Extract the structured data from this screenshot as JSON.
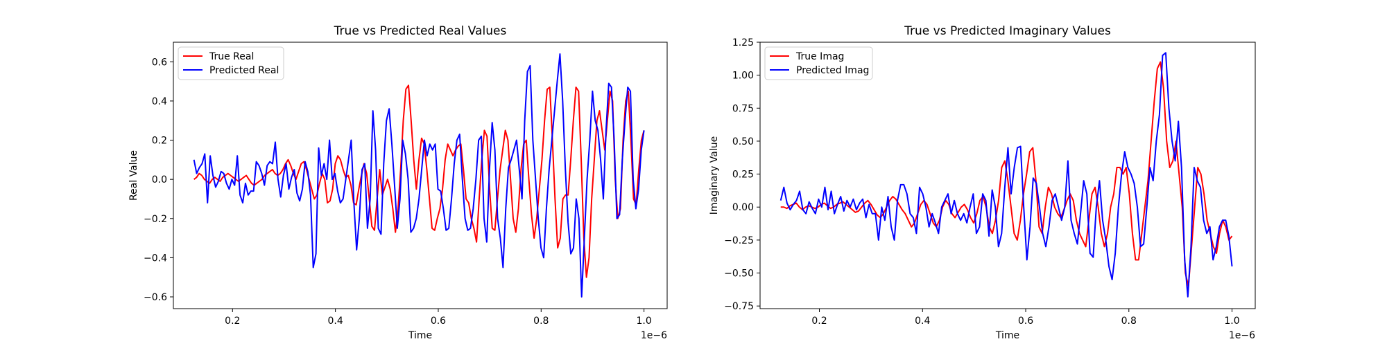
{
  "chart_data": [
    {
      "type": "line",
      "title": "True vs Predicted Real Values",
      "xlabel": "Time",
      "ylabel": "Real Value",
      "x_offset_label": "1e−6",
      "xlim": [
        0.085,
        1.045
      ],
      "ylim": [
        -0.66,
        0.7
      ],
      "xticks": [
        0.2,
        0.4,
        0.6,
        0.8,
        1.0
      ],
      "xtick_labels": [
        "0.2",
        "0.4",
        "0.6",
        "0.8",
        "1.0"
      ],
      "yticks": [
        -0.6,
        -0.4,
        -0.2,
        0.0,
        0.2,
        0.4,
        0.6
      ],
      "ytick_labels": [
        "−0.6",
        "−0.4",
        "−0.2",
        "0.0",
        "0.2",
        "0.4",
        "0.6"
      ],
      "legend": "upper-left",
      "x_range": [
        0.125,
        1.0
      ],
      "series": [
        {
          "name": "True Real",
          "color": "#ff0000",
          "values": [
            0.0,
            0.01,
            0.03,
            0.02,
            0.0,
            -0.01,
            -0.02,
            0.0,
            0.01,
            0.0,
            -0.01,
            0.01,
            0.02,
            0.03,
            0.02,
            0.01,
            0.0,
            -0.01,
            0.0,
            0.01,
            0.02,
            0.0,
            -0.02,
            -0.03,
            -0.02,
            -0.01,
            0.0,
            0.02,
            0.03,
            0.04,
            0.05,
            0.03,
            0.02,
            0.03,
            0.05,
            0.08,
            0.1,
            0.07,
            0.03,
            0.0,
            0.04,
            0.08,
            0.09,
            0.05,
            0.0,
            -0.05,
            -0.1,
            -0.08,
            -0.02,
            0.03,
            0.0,
            -0.12,
            -0.11,
            -0.05,
            0.08,
            0.12,
            0.1,
            0.05,
            0.01,
            0.02,
            -0.03,
            -0.12,
            -0.13,
            -0.05,
            0.02,
            0.08,
            0.03,
            -0.1,
            -0.24,
            -0.26,
            -0.1,
            0.05,
            -0.08,
            -0.04,
            0.0,
            -0.05,
            -0.15,
            -0.27,
            -0.15,
            0.05,
            0.3,
            0.46,
            0.48,
            0.3,
            0.1,
            -0.05,
            0.1,
            0.21,
            0.18,
            0.05,
            -0.1,
            -0.25,
            -0.26,
            -0.2,
            -0.15,
            -0.05,
            0.1,
            0.18,
            0.15,
            0.12,
            0.15,
            0.17,
            0.18,
            0.05,
            -0.1,
            -0.12,
            -0.2,
            -0.25,
            -0.32,
            -0.1,
            0.1,
            0.25,
            0.22,
            -0.05,
            -0.25,
            -0.26,
            -0.1,
            0.05,
            0.15,
            0.25,
            0.2,
            0.0,
            -0.2,
            -0.27,
            -0.15,
            0.05,
            0.18,
            0.2,
            0.0,
            -0.18,
            -0.3,
            -0.2,
            -0.05,
            0.1,
            0.3,
            0.46,
            0.47,
            0.2,
            -0.1,
            -0.35,
            -0.3,
            -0.1,
            -0.08,
            -0.08,
            0.1,
            0.3,
            0.47,
            0.45,
            0.1,
            -0.3,
            -0.5,
            -0.4,
            -0.1,
            0.1,
            0.3,
            0.35,
            0.25,
            0.15,
            0.3,
            0.45,
            0.4,
            0.0,
            -0.2,
            -0.15,
            0.2,
            0.4,
            0.45,
            0.2,
            -0.1,
            -0.13,
            0.05,
            0.2,
            0.25
          ]
        },
        {
          "name": "Predicted Real",
          "color": "#0000ff",
          "values": [
            0.1,
            0.03,
            0.06,
            0.08,
            0.13,
            -0.12,
            0.12,
            0.02,
            -0.04,
            -0.01,
            0.04,
            0.03,
            -0.02,
            -0.05,
            0.0,
            -0.03,
            0.12,
            -0.08,
            -0.12,
            -0.02,
            -0.08,
            -0.06,
            -0.06,
            0.09,
            0.07,
            0.03,
            -0.03,
            0.07,
            0.09,
            0.08,
            0.19,
            0.0,
            -0.09,
            0.02,
            0.08,
            -0.05,
            0.01,
            0.05,
            -0.07,
            -0.11,
            -0.05,
            0.09,
            0.04,
            -0.08,
            -0.45,
            -0.38,
            0.16,
            0.02,
            0.08,
            0.0,
            0.2,
            0.0,
            0.03,
            -0.06,
            -0.12,
            -0.1,
            0.0,
            0.1,
            0.2,
            -0.12,
            -0.36,
            -0.2,
            0.05,
            0.08,
            -0.25,
            -0.1,
            0.35,
            0.15,
            -0.25,
            -0.28,
            0.08,
            0.3,
            0.36,
            0.18,
            -0.03,
            -0.25,
            -0.1,
            0.2,
            0.13,
            0.0,
            -0.27,
            -0.25,
            -0.2,
            -0.1,
            0.05,
            0.2,
            0.12,
            0.18,
            0.15,
            0.18,
            -0.05,
            -0.06,
            -0.15,
            -0.26,
            -0.25,
            -0.1,
            0.08,
            0.2,
            0.23,
            0.0,
            -0.2,
            -0.26,
            -0.25,
            -0.15,
            0.0,
            0.2,
            0.22,
            -0.2,
            -0.32,
            0.05,
            0.29,
            0.15,
            -0.2,
            -0.3,
            -0.45,
            -0.15,
            0.06,
            0.1,
            0.15,
            0.2,
            0.05,
            -0.1,
            0.3,
            0.55,
            0.58,
            0.2,
            0.0,
            -0.2,
            -0.35,
            -0.4,
            -0.15,
            0.05,
            0.2,
            0.35,
            0.5,
            0.64,
            0.4,
            0.05,
            -0.22,
            -0.38,
            -0.35,
            -0.1,
            -0.2,
            -0.6,
            -0.3,
            0.0,
            0.2,
            0.45,
            0.3,
            0.25,
            0.1,
            -0.1,
            0.25,
            0.49,
            0.47,
            0.2,
            -0.2,
            -0.18,
            0.1,
            0.3,
            0.47,
            0.45,
            0.0,
            -0.15,
            -0.05,
            0.15,
            0.25
          ]
        }
      ]
    },
    {
      "type": "line",
      "title": "True vs Predicted Imaginary Values",
      "xlabel": "Time",
      "ylabel": "Imaginary Value",
      "x_offset_label": "1e−6",
      "xlim": [
        0.085,
        1.045
      ],
      "ylim": [
        -0.77,
        1.25
      ],
      "xticks": [
        0.2,
        0.4,
        0.6,
        0.8,
        1.0
      ],
      "xtick_labels": [
        "0.2",
        "0.4",
        "0.6",
        "0.8",
        "1.0"
      ],
      "yticks": [
        -0.75,
        -0.5,
        -0.25,
        0.0,
        0.25,
        0.5,
        0.75,
        1.0,
        1.25
      ],
      "ytick_labels": [
        "−0.75",
        "−0.50",
        "−0.25",
        "0.00",
        "0.25",
        "0.50",
        "0.75",
        "1.00",
        "1.25"
      ],
      "legend": "upper-left",
      "x_range": [
        0.125,
        1.0
      ],
      "series": [
        {
          "name": "True Imag",
          "color": "#ff0000",
          "values": [
            0.0,
            0.0,
            -0.01,
            0.01,
            0.02,
            0.03,
            0.0,
            -0.02,
            0.0,
            0.01,
            0.0,
            -0.01,
            0.0,
            0.02,
            0.03,
            0.01,
            -0.01,
            0.0,
            0.02,
            0.03,
            0.04,
            0.02,
            0.0,
            -0.02,
            -0.04,
            -0.03,
            0.0,
            0.03,
            0.05,
            0.02,
            -0.02,
            -0.06,
            -0.08,
            -0.05,
            0.0,
            0.05,
            0.08,
            0.06,
            0.02,
            -0.02,
            -0.05,
            -0.1,
            -0.15,
            -0.12,
            -0.05,
            0.02,
            0.05,
            0.02,
            -0.05,
            -0.12,
            -0.15,
            -0.1,
            0.0,
            0.05,
            0.02,
            -0.05,
            -0.08,
            -0.04,
            0.0,
            0.02,
            -0.02,
            -0.08,
            -0.12,
            -0.05,
            0.05,
            0.08,
            0.0,
            -0.15,
            -0.2,
            -0.1,
            0.05,
            0.3,
            0.35,
            0.2,
            0.0,
            -0.2,
            -0.25,
            -0.1,
            0.1,
            0.25,
            0.42,
            0.45,
            0.2,
            -0.15,
            -0.2,
            0.0,
            0.15,
            0.1,
            0.0,
            -0.05,
            -0.08,
            -0.02,
            0.05,
            0.1,
            0.05,
            -0.1,
            -0.2,
            -0.25,
            -0.3,
            -0.1,
            0.1,
            0.15,
            0.0,
            -0.2,
            -0.3,
            -0.2,
            0.0,
            0.1,
            0.3,
            0.3,
            0.25,
            0.3,
            0.1,
            -0.2,
            -0.4,
            -0.4,
            -0.2,
            0.0,
            0.2,
            0.5,
            0.8,
            1.05,
            1.1,
            0.9,
            0.5,
            0.3,
            0.35,
            0.5,
            0.25,
            0.0,
            -0.5,
            -0.6,
            -0.3,
            0.0,
            0.3,
            0.25,
            0.1,
            -0.1,
            -0.2,
            -0.3,
            -0.35,
            -0.2,
            -0.1,
            -0.15,
            -0.25,
            -0.22
          ]
        },
        {
          "name": "Predicted Imag",
          "color": "#0000ff",
          "values": [
            0.05,
            0.15,
            0.03,
            -0.02,
            0.02,
            0.05,
            0.12,
            -0.02,
            -0.05,
            0.04,
            -0.01,
            -0.05,
            0.06,
            0.0,
            0.15,
            -0.02,
            0.12,
            -0.05,
            0.02,
            0.08,
            -0.03,
            0.05,
            0.0,
            0.06,
            -0.02,
            0.03,
            0.06,
            -0.08,
            0.02,
            -0.05,
            -0.05,
            -0.25,
            0.0,
            -0.1,
            0.08,
            -0.15,
            -0.25,
            0.05,
            0.17,
            0.17,
            0.1,
            -0.05,
            -0.08,
            -0.2,
            0.15,
            0.1,
            0.0,
            -0.15,
            -0.05,
            -0.12,
            -0.2,
            0.0,
            0.05,
            0.1,
            -0.05,
            0.05,
            -0.05,
            -0.1,
            -0.05,
            -0.12,
            0.0,
            0.1,
            -0.2,
            -0.15,
            0.1,
            0.05,
            -0.22,
            0.13,
            0.0,
            -0.3,
            -0.2,
            0.15,
            0.45,
            0.1,
            0.3,
            0.45,
            0.46,
            0.0,
            -0.4,
            -0.15,
            0.22,
            0.18,
            0.0,
            -0.2,
            -0.3,
            -0.15,
            0.05,
            0.1,
            0.0,
            -0.1,
            0.0,
            0.35,
            -0.1,
            -0.2,
            -0.28,
            -0.05,
            0.2,
            0.1,
            -0.35,
            -0.38,
            0.0,
            0.2,
            -0.1,
            -0.25,
            -0.45,
            -0.55,
            -0.35,
            0.0,
            0.25,
            0.42,
            0.3,
            0.25,
            0.18,
            0.0,
            -0.3,
            -0.28,
            0.0,
            0.3,
            0.2,
            0.5,
            0.7,
            1.15,
            1.17,
            0.75,
            0.5,
            0.35,
            0.65,
            0.3,
            -0.4,
            -0.68,
            -0.3,
            0.3,
            0.2,
            0.15,
            -0.1,
            -0.2,
            -0.15,
            -0.4,
            -0.3,
            -0.15,
            -0.1,
            -0.1,
            -0.22,
            -0.45
          ]
        }
      ]
    }
  ]
}
